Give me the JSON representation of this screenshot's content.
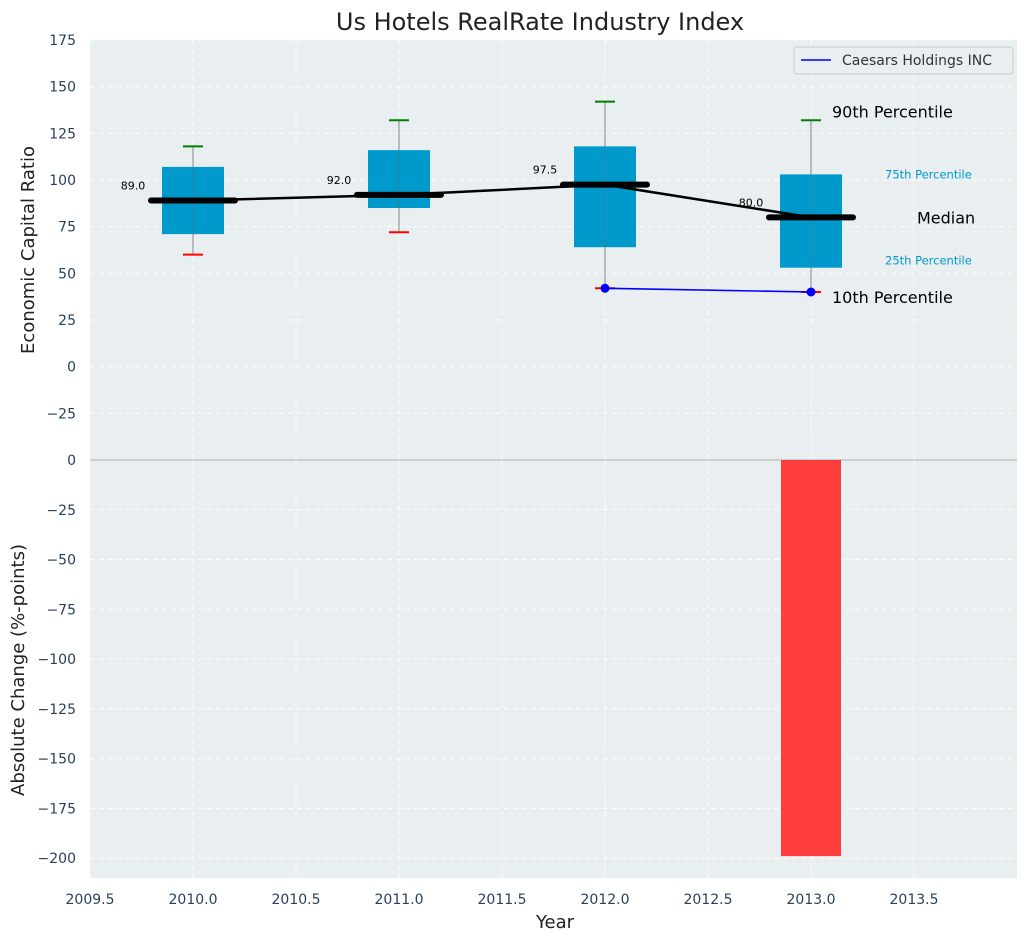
{
  "chart_data": [
    {
      "type": "box",
      "title": "Us Hotels RealRate Industry Index",
      "xlabel": "",
      "ylabel": "Economic Capital Ratio",
      "ylim": [
        -50,
        175
      ],
      "yticks": [
        175,
        150,
        125,
        100,
        75,
        50,
        25,
        0,
        -25
      ],
      "grid": true,
      "legend": {
        "position": "top-right",
        "entries": [
          "Caesars Holdings INC"
        ]
      },
      "categories": [
        2010.0,
        2011.0,
        2012.0,
        2013.0
      ],
      "boxes": [
        {
          "x": 2010.0,
          "p10": 60,
          "p25": 71,
          "median": 89.0,
          "p75": 107,
          "p90": 118,
          "median_label": "89.0"
        },
        {
          "x": 2011.0,
          "p10": 72,
          "p25": 85,
          "median": 92.0,
          "p75": 116,
          "p90": 132,
          "median_label": "92.0"
        },
        {
          "x": 2012.0,
          "p10": 42,
          "p25": 64,
          "median": 97.5,
          "p75": 118,
          "p90": 142,
          "median_label": "97.5"
        },
        {
          "x": 2013.0,
          "p10": 40,
          "p25": 53,
          "median": 80.0,
          "p75": 103,
          "p90": 132,
          "median_label": "80.0"
        }
      ],
      "series": [
        {
          "name": "Caesars Holdings INC",
          "x": [
            2012.0,
            2013.0
          ],
          "values": [
            42,
            40
          ],
          "color": "#0000ff"
        }
      ],
      "annotations": {
        "p90": "90th Percentile",
        "p75": "75th Percentile",
        "median": "Median",
        "p25": "25th Percentile",
        "p10": "10th Percentile"
      }
    },
    {
      "type": "bar",
      "xlabel": "Year",
      "ylabel": "Absolute Change (%-points)",
      "ylim": [
        -210,
        0
      ],
      "yticks": [
        0,
        -25,
        -50,
        -75,
        -100,
        -125,
        -150,
        -175,
        -200
      ],
      "xlim": [
        2009.5,
        2014.0
      ],
      "xticks": [
        "2009.5",
        "2010.0",
        "2010.5",
        "2011.0",
        "2011.5",
        "2012.0",
        "2012.5",
        "2013.0",
        "2013.5"
      ],
      "grid": true,
      "categories": [
        2013.0
      ],
      "values": [
        -199
      ]
    }
  ],
  "colors": {
    "background": "#e9eef0",
    "box_fill": "#0099cc",
    "median": "#000000",
    "whisker_top": "#008000",
    "whisker_bottom": "#ff0000",
    "bar": "#ff3333",
    "series": "#0000ff",
    "tick_text": "#2a3f5f",
    "annotation_teal": "#0099cc"
  }
}
